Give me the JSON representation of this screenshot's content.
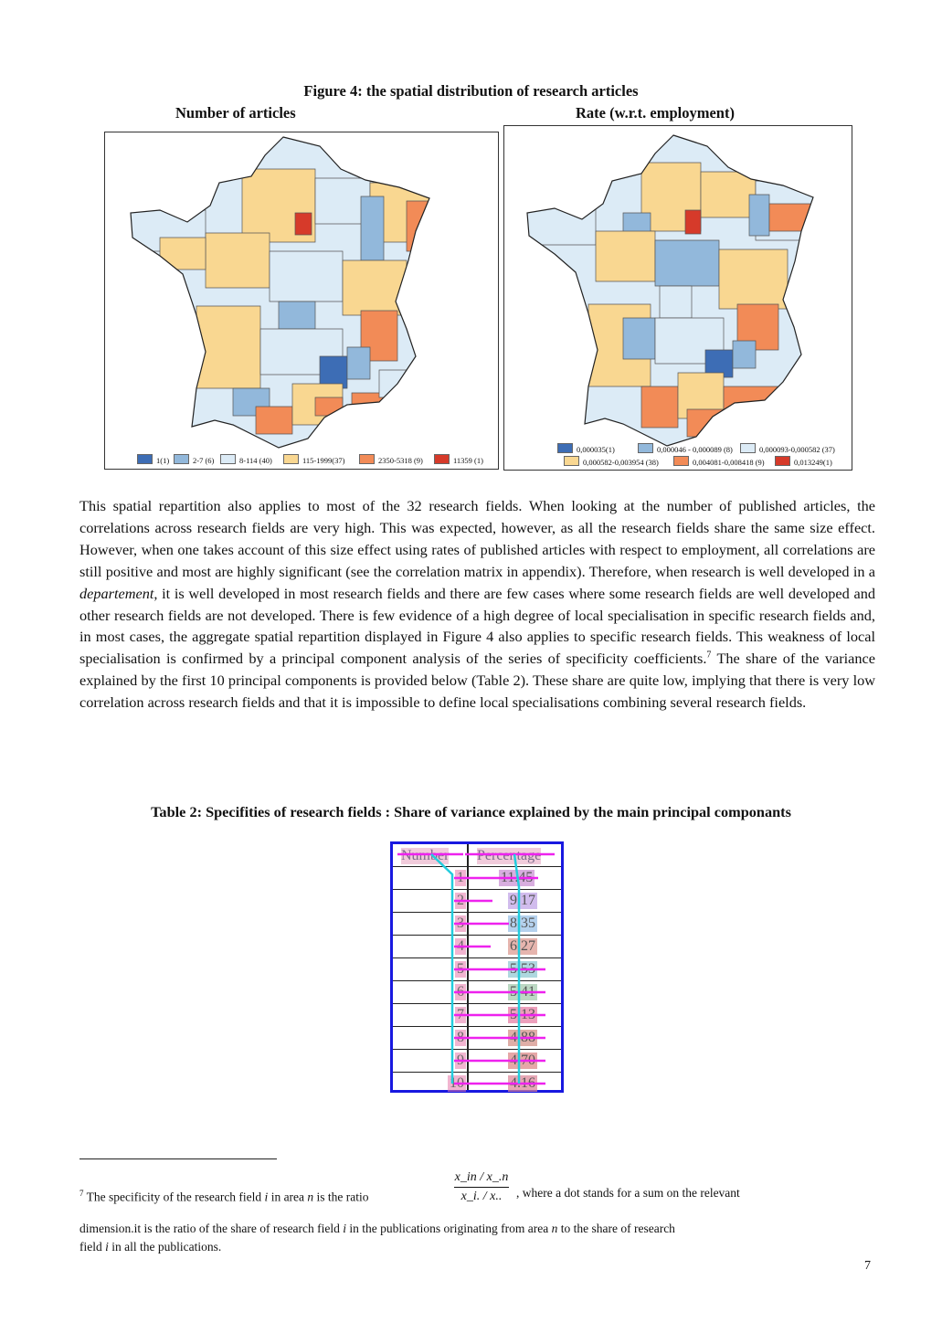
{
  "figure": {
    "title": "Figure 4: the spatial distribution of research articles",
    "left_label": "Number of articles",
    "right_label": "Rate (w.r.t. employment)",
    "legend_left": [
      {
        "label": "1(1)",
        "color": "#3d6db5"
      },
      {
        "label": "2-7 (6)",
        "color": "#92b8db"
      },
      {
        "label": "8-114 (40)",
        "color": "#dcebf6"
      },
      {
        "label": "115-1999(37)",
        "color": "#f9d791"
      },
      {
        "label": "2350-5318 (9)",
        "color": "#f28b57"
      },
      {
        "label": "11359 (1)",
        "color": "#d63a2a"
      }
    ],
    "legend_right": [
      {
        "label": "0,000035(1)",
        "color": "#3d6db5"
      },
      {
        "label": "0,000046 - 0,000089 (8)",
        "color": "#92b8db"
      },
      {
        "label": "0,000093-0,000582 (37)",
        "color": "#dcebf6"
      },
      {
        "label": "0,000582-0,003954 (38)",
        "color": "#f9d791"
      },
      {
        "label": "0,004081-0,008418 (9)",
        "color": "#f28b57"
      },
      {
        "label": "0,013249(1)",
        "color": "#d63a2a"
      }
    ]
  },
  "paragraph": {
    "p1": "This spatial repartition also applies to most of the 32 research fields. When looking at the number of published articles, the correlations across research fields are very high. This was expected, however, as all the research fields share the same size effect. However, when one takes account of this size effect using rates of published articles with respect to employment, all correlations are still positive and most are highly significant (see the correlation matrix in appendix). Therefore, when research is well developed in a ",
    "em": "departement",
    "p2": ", it is well developed in most research fields and there are few cases where some research fields are well developed and other research fields are not developed. There is few evidence of a high degree of local specialisation in specific research fields and, in most cases, the aggregate spatial repartition displayed in Figure 4 also applies to specific research fields. This weakness of local specialisation is confirmed by a principal component analysis of the series of specificity coefficients.",
    "sup": "7",
    "p3": " The share of the variance explained by the first 10 principal components is provided below (Table 2). These share are quite low, implying that there is very low correlation across research fields and that it is impossible to define local specialisations combining several research fields."
  },
  "table": {
    "title": "Table 2: Specifities of research fields : Share of variance explained by the main principal componants",
    "headers": {
      "number": "Number",
      "percentage": "Percentage"
    },
    "rows": [
      {
        "n": "1",
        "p": "11.45"
      },
      {
        "n": "2",
        "p": "9.17"
      },
      {
        "n": "3",
        "p": "8.35"
      },
      {
        "n": "4",
        "p": "6.27"
      },
      {
        "n": "5",
        "p": "5.53"
      },
      {
        "n": "6",
        "p": "5.41"
      },
      {
        "n": "7",
        "p": "5.13"
      },
      {
        "n": "8",
        "p": "4.88"
      },
      {
        "n": "9",
        "p": "4.70"
      },
      {
        "n": "10",
        "p": "4.16"
      }
    ]
  },
  "footnote": {
    "mark": "7",
    "text_a": "The specificity of the research field ",
    "i": "i",
    "text_b": " in area ",
    "n": "n",
    "text_c": " is the ratio",
    "frac_num": "x_in / x_.n",
    "frac_den": "x_i. / x..",
    "text_d": ", where a dot stands for a sum on the relevant",
    "line2_a": "dimension.it is the ratio of the share of research field ",
    "line2_b": " in the publications originating from area ",
    "line2_c": " to the share of research",
    "line3_a": "field ",
    "line3_b": " in all the publications."
  },
  "page_number": "7"
}
